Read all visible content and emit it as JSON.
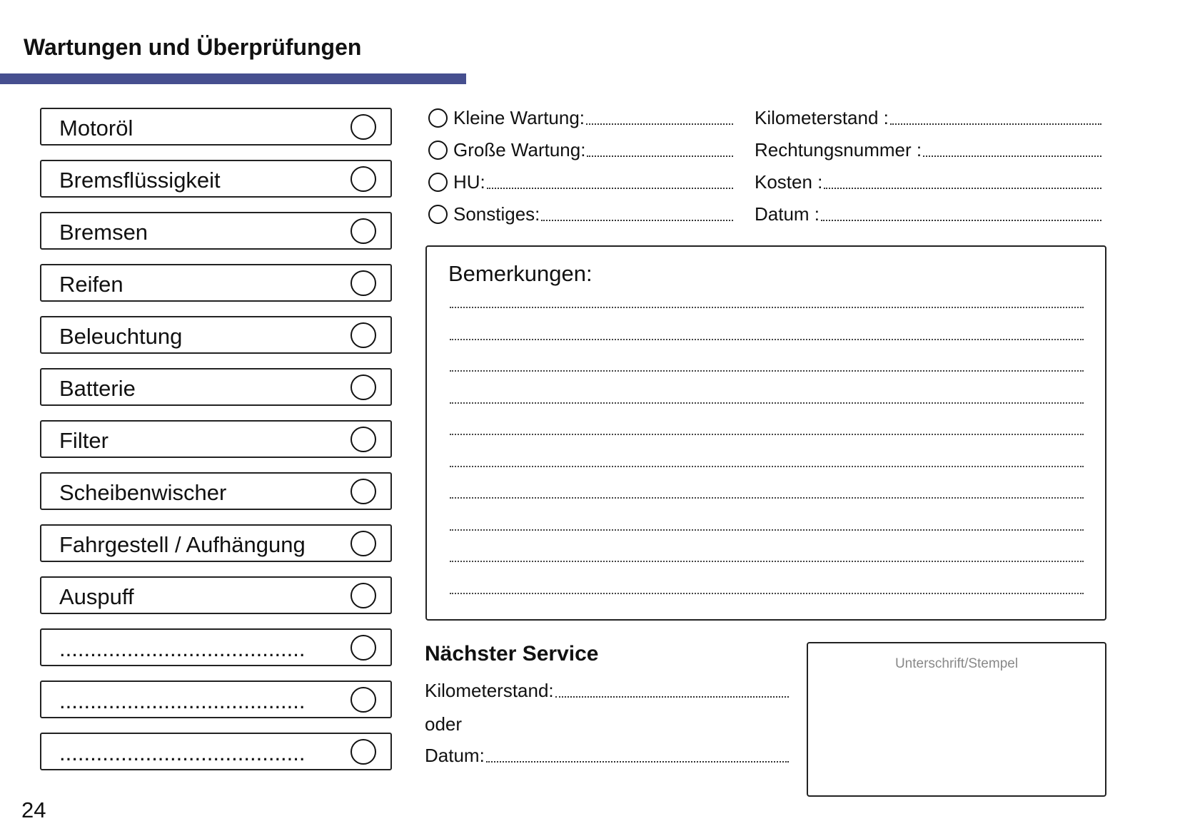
{
  "header": {
    "title": "Wartungen und Überprüfungen",
    "accent_color": "#464f8f"
  },
  "checklist": [
    {
      "label": "Motoröl"
    },
    {
      "label": "Bremsflüssigkeit"
    },
    {
      "label": "Bremsen"
    },
    {
      "label": "Reifen"
    },
    {
      "label": "Beleuchtung"
    },
    {
      "label": "Batterie"
    },
    {
      "label": "Filter"
    },
    {
      "label": "Scheibenwischer"
    },
    {
      "label": "Fahrgestell / Aufhängung"
    },
    {
      "label": "Auspuff"
    },
    {
      "label": "........................................"
    },
    {
      "label": "........................................"
    },
    {
      "label": "........................................"
    }
  ],
  "service_type": [
    {
      "label": "Kleine Wartung:"
    },
    {
      "label": "Große Wartung:"
    },
    {
      "label": "HU:"
    },
    {
      "label": "Sonstiges:"
    }
  ],
  "details": [
    {
      "label": "Kilometerstand :"
    },
    {
      "label": "Rechtungsnummer :"
    },
    {
      "label": "Kosten :"
    },
    {
      "label": "Datum :"
    }
  ],
  "remarks": {
    "title": "Bemerkungen:"
  },
  "next_service": {
    "title": "Nächster Service",
    "km_label": "Kilometerstand:",
    "or_label": "oder",
    "date_label": "Datum:"
  },
  "signature": {
    "label": "Unterschrift/Stempel"
  },
  "page_number": "24"
}
